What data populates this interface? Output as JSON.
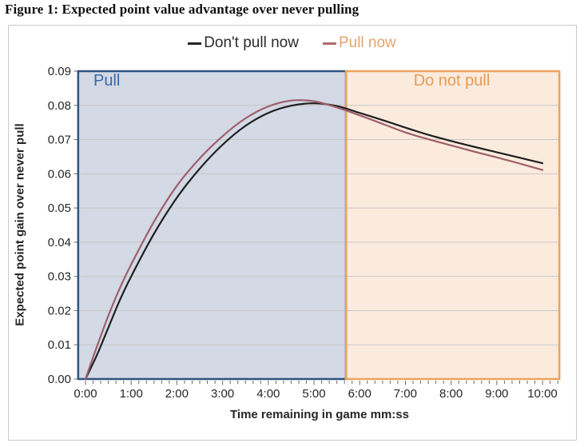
{
  "title": "Figure 1: Expected point value advantage over never pulling",
  "legend": {
    "items": [
      {
        "swatch_color": "#262626",
        "text_color": "#2b2b2b"
      },
      {
        "swatch_color": "#b06c6c",
        "text_color": "#e3a468"
      }
    ]
  },
  "chart_data": {
    "type": "line",
    "title": "Figure 1: Expected point value advantage over never pulling",
    "xlabel": "Time remaining in game mm:ss",
    "ylabel": "Expected point gain over never pull",
    "x_unit": "minutes_remaining",
    "xlim": [
      0,
      10
    ],
    "ylim": [
      0,
      0.09
    ],
    "grid": "horizontal",
    "legend_position": "top-center",
    "plot_x_range_visual": [
      -0.16,
      10.37
    ],
    "x_ticks": {
      "values": [
        0,
        1,
        2,
        3,
        4,
        5,
        6,
        7,
        8,
        9,
        10
      ],
      "labels": [
        "0:00",
        "1:00",
        "2:00",
        "3:00",
        "4:00",
        "5:00",
        "6:00",
        "7:00",
        "8:00",
        "9:00",
        "10:00"
      ],
      "minor_step": 0.1667
    },
    "y_ticks": {
      "values": [
        0,
        0.01,
        0.02,
        0.03,
        0.04,
        0.05,
        0.06,
        0.07,
        0.08,
        0.09
      ],
      "labels": [
        "0.00",
        "0.01",
        "0.02",
        "0.03",
        "0.04",
        "0.05",
        "0.06",
        "0.07",
        "0.08",
        "0.09"
      ]
    },
    "regions": [
      {
        "label": "Pull",
        "from": -0.16,
        "to": 5.7,
        "fill": "#d3d9e5",
        "border": "#31527d",
        "label_color": "#3b69a8"
      },
      {
        "label": "Do not pull",
        "from": 5.7,
        "to": 10.37,
        "fill": "#fbebdd",
        "border": "#e9a35c",
        "label_color": "#e59a55"
      }
    ],
    "series": [
      {
        "name": "Don't pull now",
        "color": "#1f1f1f",
        "points": [
          [
            0,
            0
          ],
          [
            0.25,
            0.007
          ],
          [
            0.5,
            0.015
          ],
          [
            0.75,
            0.023
          ],
          [
            1,
            0.03
          ],
          [
            1.5,
            0.0425
          ],
          [
            2,
            0.053
          ],
          [
            2.5,
            0.0615
          ],
          [
            3,
            0.0685
          ],
          [
            3.5,
            0.074
          ],
          [
            4,
            0.0778
          ],
          [
            4.5,
            0.0799
          ],
          [
            5,
            0.0806
          ],
          [
            5.5,
            0.0798
          ],
          [
            6,
            0.0778
          ],
          [
            6.5,
            0.0757
          ],
          [
            7,
            0.0735
          ],
          [
            7.5,
            0.0714
          ],
          [
            8,
            0.0696
          ],
          [
            8.5,
            0.0679
          ],
          [
            9,
            0.0663
          ],
          [
            9.5,
            0.0647
          ],
          [
            10,
            0.0631
          ]
        ]
      },
      {
        "name": "Pull now",
        "color": "#9e5f6b",
        "points": [
          [
            0,
            0
          ],
          [
            0.25,
            0.0095
          ],
          [
            0.5,
            0.0185
          ],
          [
            0.75,
            0.0265
          ],
          [
            1,
            0.0335
          ],
          [
            1.5,
            0.046
          ],
          [
            2,
            0.0565
          ],
          [
            2.5,
            0.0645
          ],
          [
            3,
            0.071
          ],
          [
            3.5,
            0.0762
          ],
          [
            4,
            0.0797
          ],
          [
            4.5,
            0.0814
          ],
          [
            5,
            0.0812
          ],
          [
            5.5,
            0.0794
          ],
          [
            6,
            0.0771
          ],
          [
            6.5,
            0.0746
          ],
          [
            7,
            0.0721
          ],
          [
            7.5,
            0.0701
          ],
          [
            8,
            0.0683
          ],
          [
            8.5,
            0.0665
          ],
          [
            9,
            0.0648
          ],
          [
            9.5,
            0.063
          ],
          [
            10,
            0.0611
          ]
        ]
      }
    ]
  }
}
